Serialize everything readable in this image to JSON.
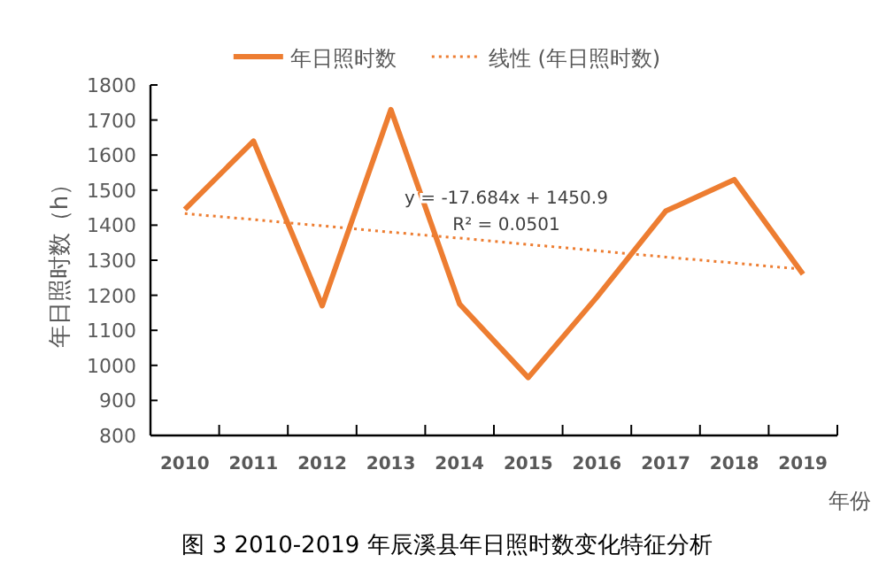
{
  "chart_data": {
    "type": "line",
    "title": "图 3 2010-2019 年辰溪县年日照时数变化特征分析",
    "xlabel": "年份",
    "ylabel": "年日照时数（h）",
    "categories": [
      "2010",
      "2011",
      "2012",
      "2013",
      "2014",
      "2015",
      "2016",
      "2017",
      "2018",
      "2019"
    ],
    "series": [
      {
        "name": "年日照时数",
        "color": "#ed7d31",
        "values": [
          1445,
          1640,
          1170,
          1730,
          1175,
          965,
          1195,
          1440,
          1530,
          1260
        ]
      },
      {
        "name": "线性 (年日照时数)",
        "type": "line",
        "line_style": "dotted",
        "color": "#ed7d31",
        "values": [
          1433,
          1416,
          1398,
          1380,
          1363,
          1345,
          1327,
          1309,
          1292,
          1274
        ]
      }
    ],
    "ylim": [
      800,
      1800
    ],
    "yticks": [
      800,
      900,
      1000,
      1100,
      1200,
      1300,
      1400,
      1500,
      1600,
      1700,
      1800
    ],
    "annotations": [
      "y = -17.684x + 1450.9",
      "R² = 0.0501"
    ],
    "legend": "top",
    "grid": false,
    "marker": "none",
    "line_style": "solid"
  }
}
